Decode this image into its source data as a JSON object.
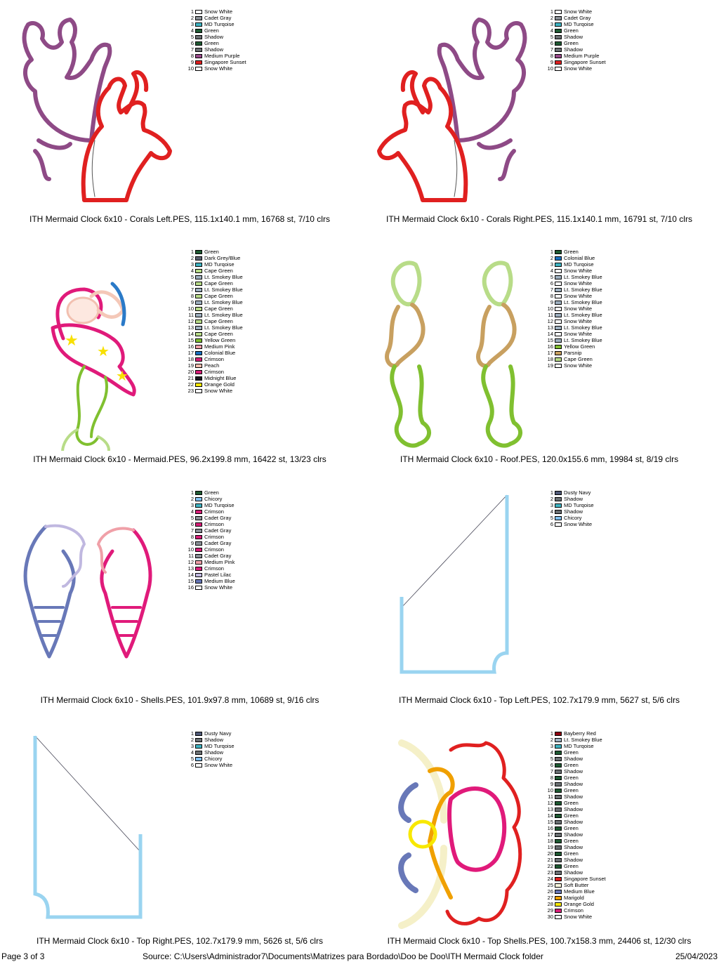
{
  "palette": {
    "Snow White": "#ffffff",
    "Cadet Gray": "#8a9096",
    "MD Turqoise": "#3fb5c4",
    "Green": "#1e5a32",
    "Shadow": "#6b7073",
    "Medium Purple": "#9b4a8c",
    "Singapore Sunset": "#e02020",
    "Dark Grey/Blue": "#5a6070",
    "Cape Green": "#b8dc88",
    "Lt. Smokey Blue": "#9eb0c0",
    "Yellow Green": "#80c030",
    "Medium Pink": "#f0a0a8",
    "Colonial Blue": "#1a70c0",
    "Crimson": "#d81e78",
    "Peach": "#f5c0b0",
    "Midnight Blue": "#1a1a20",
    "Orange Gold": "#f8e800",
    "Parsnip": "#c8a060",
    "Chicory": "#80c0f0",
    "Pastel Lilac": "#c0b8e0",
    "Medium Blue": "#6878b8",
    "Dusty Navy": "#505a78",
    "Bayberry Red": "#900010",
    "Soft Butter": "#fffce0",
    "Marigold": "#f0a000"
  },
  "designs": [
    {
      "caption": "ITH Mermaid Clock 6x10 - Corals Left.PES, 115.1x140.1 mm, 16768 st, 7/10 clrs",
      "art": "corals-left",
      "colors": [
        "Snow White",
        "Cadet Gray",
        "MD Turqoise",
        "Green",
        "Shadow",
        "Green",
        "Shadow",
        "Medium Purple",
        "Singapore Sunset",
        "Snow White"
      ]
    },
    {
      "caption": "ITH Mermaid Clock 6x10 - Corals Right.PES, 115.1x140.1 mm, 16791 st, 7/10 clrs",
      "art": "corals-right",
      "colors": [
        "Snow White",
        "Cadet Gray",
        "MD Turqoise",
        "Green",
        "Shadow",
        "Green",
        "Shadow",
        "Medium Purple",
        "Singapore Sunset",
        "Snow White"
      ]
    },
    {
      "caption": "ITH Mermaid Clock 6x10 - Mermaid.PES, 96.2x199.8 mm, 16422 st, 13/23 clrs",
      "art": "mermaid",
      "colors": [
        "Green",
        "Dark Grey/Blue",
        "MD Turqoise",
        "Cape Green",
        "Lt. Smokey Blue",
        "Cape Green",
        "Lt. Smokey Blue",
        "Cape Green",
        "Lt. Smokey Blue",
        "Cape Green",
        "Lt. Smokey Blue",
        "Cape Green",
        "Lt. Smokey Blue",
        "Cape Green",
        "Yellow Green",
        "Medium Pink",
        "Colonial Blue",
        "Crimson",
        "Peach",
        "Crimson",
        "Midnight Blue",
        "Orange Gold",
        "Snow White"
      ]
    },
    {
      "caption": "ITH Mermaid Clock 6x10 - Roof.PES, 120.0x155.6 mm, 19984 st, 8/19 clrs",
      "art": "roof",
      "colors": [
        "Green",
        "Colonial Blue",
        "MD Turqoise",
        "Snow White",
        "Lt. Smokey Blue",
        "Snow White",
        "Lt. Smokey Blue",
        "Snow White",
        "Lt. Smokey Blue",
        "Snow White",
        "Lt. Smokey Blue",
        "Snow White",
        "Lt. Smokey Blue",
        "Snow White",
        "Lt. Smokey Blue",
        "Yellow Green",
        "Parsnip",
        "Cape Green",
        "Snow White"
      ]
    },
    {
      "caption": "ITH Mermaid Clock 6x10 - Shells.PES, 101.9x97.8 mm, 10689 st, 9/16 clrs",
      "art": "shells",
      "colors": [
        "Green",
        "Chicory",
        "MD Turqoise",
        "Crimson",
        "Cadet Gray",
        "Crimson",
        "Cadet Gray",
        "Crimson",
        "Cadet Gray",
        "Crimson",
        "Cadet Gray",
        "Medium Pink",
        "Crimson",
        "Pastel Lilac",
        "Medium Blue",
        "Snow White"
      ]
    },
    {
      "caption": "ITH Mermaid Clock 6x10 - Top Left.PES, 102.7x179.9 mm, 5627 st, 5/6 clrs",
      "art": "top-left",
      "colors": [
        "Dusty Navy",
        "Shadow",
        "MD Turqoise",
        "Shadow",
        "Chicory",
        "Snow White"
      ]
    },
    {
      "caption": "ITH Mermaid Clock 6x10 - Top Right.PES, 102.7x179.9 mm, 5626 st, 5/6 clrs",
      "art": "top-right",
      "colors": [
        "Dusty Navy",
        "Shadow",
        "MD Turqoise",
        "Shadow",
        "Chicory",
        "Snow White"
      ]
    },
    {
      "caption": "ITH Mermaid Clock 6x10 - Top Shells.PES, 100.7x158.3 mm, 24406 st, 12/30 clrs",
      "art": "top-shells",
      "colors": [
        "Bayberry Red",
        "Lt. Smokey Blue",
        "MD Turqoise",
        "Green",
        "Shadow",
        "Green",
        "Shadow",
        "Green",
        "Shadow",
        "Green",
        "Shadow",
        "Green",
        "Shadow",
        "Green",
        "Shadow",
        "Green",
        "Shadow",
        "Green",
        "Shadow",
        "Green",
        "Shadow",
        "Green",
        "Shadow",
        "Singapore Sunset",
        "Soft Butter",
        "Medium Blue",
        "Marigold",
        "Orange Gold",
        "Crimson",
        "Snow White"
      ]
    }
  ],
  "footer": {
    "page": "Page 3 of 3",
    "source": "Source: C:\\Users\\Administrador7\\Documents\\Matrizes para Bordado\\Doo be Doo\\ITH Mermaid Clock folder",
    "date": "25/04/2023"
  }
}
